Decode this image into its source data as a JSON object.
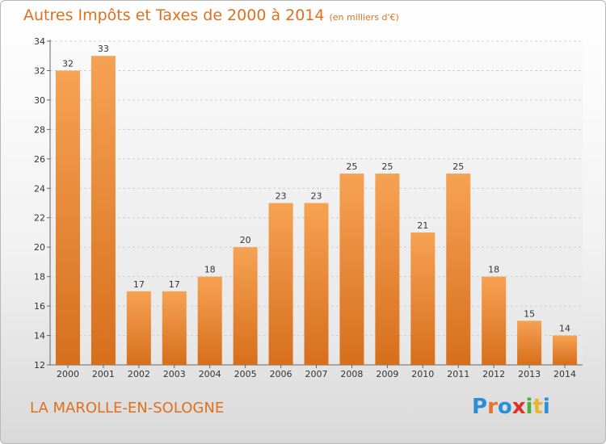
{
  "title": "Autres Impôts et Taxes de 2000 à 2014",
  "subtitle": "(en milliers d'€)",
  "commune": "LA MAROLLE-EN-SOLOGNE",
  "logo": {
    "letters": [
      "P",
      "r",
      "o",
      "x",
      "i",
      "t",
      "i"
    ],
    "colors": [
      "#2a8fd6",
      "#e8742a",
      "#2a8fd6",
      "#e0302a",
      "#4cae3c",
      "#e8b62a",
      "#2a8fd6"
    ]
  },
  "colors": {
    "bar": "#f0903a",
    "accent": "#e0701e"
  },
  "chart_data": {
    "type": "bar",
    "categories": [
      "2000",
      "2001",
      "2002",
      "2003",
      "2004",
      "2005",
      "2006",
      "2007",
      "2008",
      "2009",
      "2010",
      "2011",
      "2012",
      "2013",
      "2014"
    ],
    "values": [
      32,
      33,
      17,
      17,
      18,
      20,
      23,
      23,
      25,
      25,
      21,
      25,
      18,
      15,
      14
    ],
    "ylim": [
      12,
      34
    ],
    "yticks": [
      12,
      14,
      16,
      18,
      20,
      22,
      24,
      26,
      28,
      30,
      32,
      34
    ],
    "grid": true
  }
}
